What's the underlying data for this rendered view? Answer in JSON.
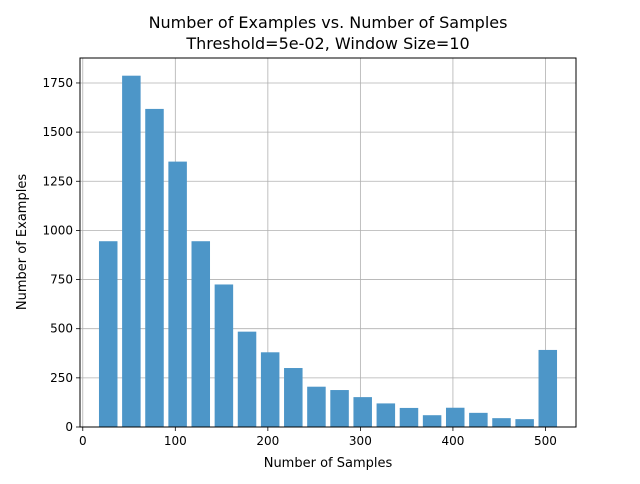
{
  "chart_data": {
    "type": "bar",
    "title": "Number of Examples vs. Number of Samples",
    "subtitle": "Threshold=5e-02, Window Size=10",
    "xlabel": "Number of Samples",
    "ylabel": "Number of Examples",
    "xlim": [
      -3,
      533
    ],
    "ylim": [
      0,
      1877
    ],
    "xticks": [
      0,
      100,
      200,
      300,
      400,
      500
    ],
    "yticks": [
      0,
      250,
      500,
      750,
      1000,
      1250,
      1500,
      1750
    ],
    "grid": true,
    "bar_color": "#4d96c8",
    "bar_width": 20,
    "x": [
      27.5,
      52.5,
      77.5,
      102.5,
      127.5,
      152.5,
      177.5,
      202.5,
      227.5,
      252.5,
      277.5,
      302.5,
      327.5,
      352.5,
      377.5,
      402.5,
      427.5,
      452.5,
      477.5,
      502.5
    ],
    "values": [
      945,
      1787,
      1618,
      1350,
      945,
      725,
      485,
      380,
      300,
      205,
      188,
      152,
      120,
      97,
      60,
      98,
      72,
      45,
      40,
      392
    ]
  }
}
